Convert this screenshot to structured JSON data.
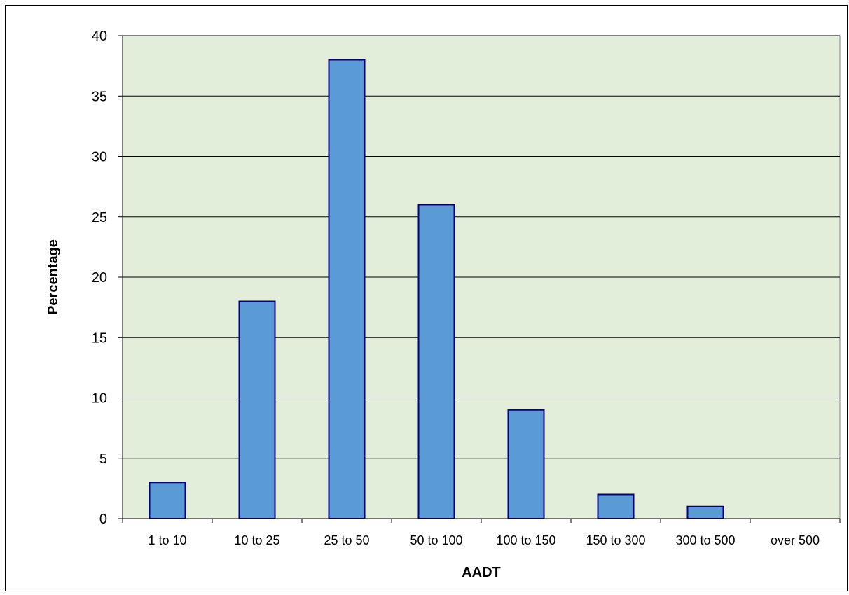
{
  "chart_data": {
    "type": "bar",
    "title": "",
    "xlabel": "AADT",
    "ylabel": "Percentage",
    "categories": [
      "1 to 10",
      "10 to 25",
      "25 to 50",
      "50 to 100",
      "100 to 150",
      "150 to 300",
      "300 to 500",
      "over 500"
    ],
    "values": [
      3,
      18,
      38,
      26,
      9,
      2,
      1,
      0
    ],
    "ylim": [
      0,
      40
    ],
    "yticks": [
      0,
      5,
      10,
      15,
      20,
      25,
      30,
      35,
      40
    ],
    "grid": "horizontal",
    "legend": "none",
    "colors": {
      "plot_background": "#E3EEDA",
      "bar_fill": "#5B9BD5",
      "bar_stroke": "#000080",
      "gridline": "#000000"
    }
  }
}
